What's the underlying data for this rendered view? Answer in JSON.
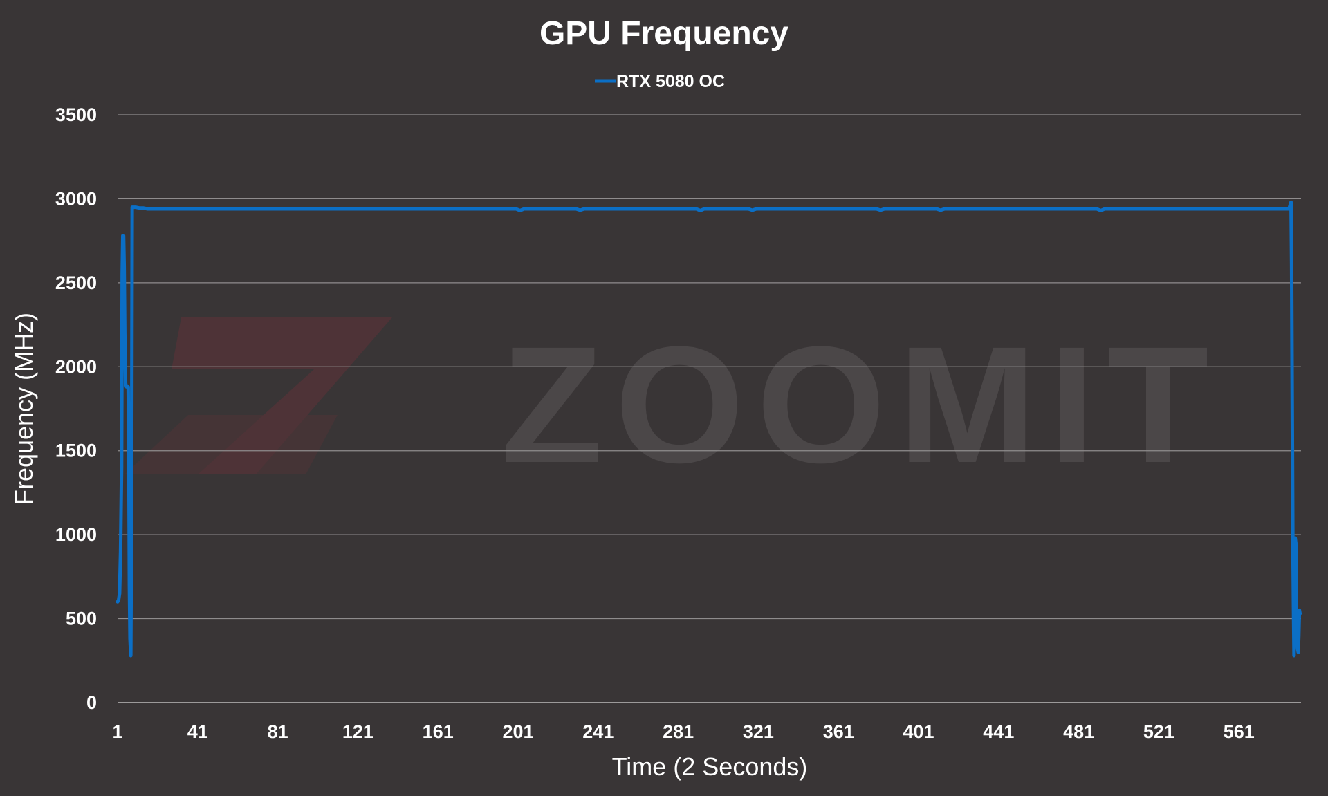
{
  "colors": {
    "background": "#393536",
    "series": "#0b6fc6",
    "watermark_text": "#4b4748",
    "watermark_logo": "#4e3337"
  },
  "watermark": {
    "text": "ZOOMIT",
    "icon": "zoomit-z-logo"
  },
  "chart_data": {
    "type": "line",
    "title": "GPU Frequency",
    "xlabel": "Time (2 Seconds)",
    "ylabel": "Frequency (MHz)",
    "xlim": [
      1,
      592
    ],
    "ylim": [
      0,
      3500
    ],
    "grid": true,
    "legend_position": "top-center",
    "x_ticks": [
      1,
      41,
      81,
      121,
      161,
      201,
      241,
      281,
      321,
      361,
      401,
      441,
      481,
      521,
      561
    ],
    "y_ticks": [
      0,
      500,
      1000,
      1500,
      2000,
      2500,
      3000,
      3500
    ],
    "series": [
      {
        "name": "RTX 5080 OC",
        "color": "#0b6fc6",
        "points": [
          [
            1,
            600
          ],
          [
            1.5,
            610
          ],
          [
            2,
            650
          ],
          [
            2.5,
            900
          ],
          [
            3,
            1400
          ],
          [
            3.3,
            2550
          ],
          [
            3.6,
            2780
          ],
          [
            4,
            2780
          ],
          [
            4.3,
            2600
          ],
          [
            4.6,
            2200
          ],
          [
            5,
            1900
          ],
          [
            5.5,
            1880
          ],
          [
            6,
            1880
          ],
          [
            6.3,
            1880
          ],
          [
            6.6,
            1500
          ],
          [
            6.9,
            700
          ],
          [
            7.2,
            380
          ],
          [
            7.6,
            280
          ],
          [
            8,
            1200
          ],
          [
            8.3,
            2950
          ],
          [
            9,
            2950
          ],
          [
            10,
            2950
          ],
          [
            12,
            2945
          ],
          [
            14,
            2945
          ],
          [
            16,
            2940
          ],
          [
            40,
            2940
          ],
          [
            80,
            2940
          ],
          [
            120,
            2940
          ],
          [
            160,
            2940
          ],
          [
            200,
            2940
          ],
          [
            202,
            2930
          ],
          [
            204,
            2940
          ],
          [
            230,
            2940
          ],
          [
            232,
            2932
          ],
          [
            234,
            2940
          ],
          [
            290,
            2940
          ],
          [
            292,
            2930
          ],
          [
            294,
            2940
          ],
          [
            316,
            2940
          ],
          [
            318,
            2932
          ],
          [
            320,
            2940
          ],
          [
            380,
            2940
          ],
          [
            382,
            2932
          ],
          [
            384,
            2940
          ],
          [
            410,
            2940
          ],
          [
            412,
            2932
          ],
          [
            414,
            2940
          ],
          [
            490,
            2940
          ],
          [
            492,
            2930
          ],
          [
            494,
            2940
          ],
          [
            540,
            2940
          ],
          [
            586,
            2940
          ],
          [
            586.5,
            2960
          ],
          [
            587,
            2980
          ],
          [
            587.3,
            2600
          ],
          [
            587.6,
            1800
          ],
          [
            587.9,
            1000
          ],
          [
            588.2,
            600
          ],
          [
            588.5,
            280
          ],
          [
            588.8,
            700
          ],
          [
            589.1,
            980
          ],
          [
            589.4,
            950
          ],
          [
            589.7,
            600
          ],
          [
            590,
            420
          ],
          [
            590.3,
            320
          ],
          [
            590.6,
            300
          ],
          [
            590.9,
            400
          ],
          [
            591.2,
            550
          ],
          [
            591.5,
            530
          ]
        ]
      }
    ]
  }
}
